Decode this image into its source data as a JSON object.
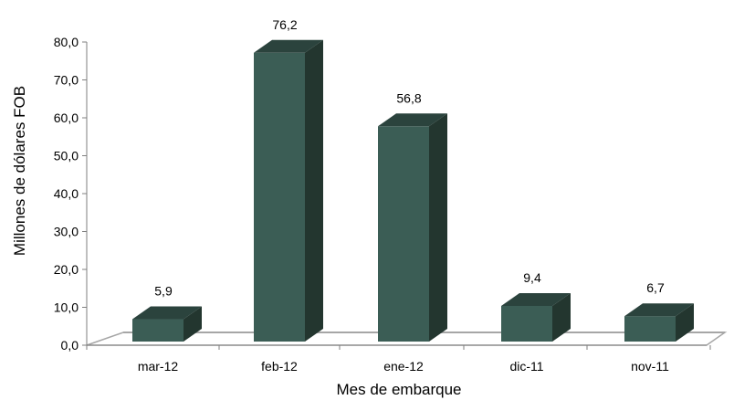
{
  "chart_data": {
    "type": "bar",
    "categories": [
      "mar-12",
      "feb-12",
      "ene-12",
      "dic-11",
      "nov-11"
    ],
    "values": [
      5.9,
      76.2,
      56.8,
      9.4,
      6.7
    ],
    "value_labels": [
      "5,9",
      "76,2",
      "56,8",
      "9,4",
      "6,7"
    ],
    "yticks": [
      "0,0",
      "10,0",
      "20,0",
      "30,0",
      "40,0",
      "50,0",
      "60,0",
      "70,0",
      "80,0"
    ],
    "ylim": [
      0,
      80
    ],
    "xlabel": "Mes de embarque",
    "ylabel": "Millones de dólares FOB",
    "grid": false,
    "legend": "none",
    "style": "3d",
    "colors": {
      "bar_front": "#3b5d55",
      "bar_side": "#23362f",
      "bar_top": "#2b433d",
      "floor_edge": "#a6a6a6",
      "axis": "#7f7f7f"
    }
  }
}
